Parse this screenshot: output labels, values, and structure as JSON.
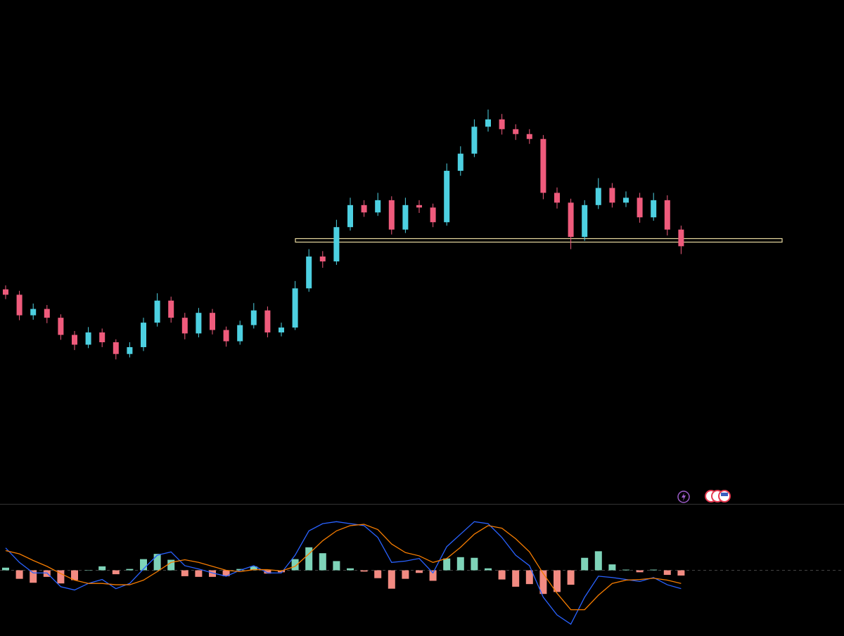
{
  "chart_data": [
    {
      "type": "candlestick",
      "up_color": "#4dd0e1",
      "down_color": "#ef5b7c",
      "level": 153.8,
      "level_color": "#e8d9a0",
      "ylim": [
        100,
        200
      ],
      "open": [
        143.8,
        142.7,
        138.5,
        139.8,
        138.0,
        134.5,
        132.5,
        135.0,
        133.0,
        130.6,
        132.0,
        137.0,
        141.5,
        138.0,
        134.8,
        139.0,
        135.5,
        133.2,
        136.5,
        139.5,
        135.0,
        136.0,
        144.0,
        150.5,
        149.5,
        156.5,
        161.0,
        159.5,
        162.0,
        156.0,
        161.0,
        160.5,
        157.5,
        168.0,
        171.5,
        177.0,
        178.5,
        176.5,
        175.5,
        174.5,
        163.5,
        161.5,
        154.5,
        161.0,
        164.5,
        161.5,
        162.5,
        158.5,
        162.0,
        156.0
      ],
      "high": [
        144.6,
        143.5,
        140.9,
        140.6,
        138.7,
        135.3,
        136.1,
        135.8,
        133.6,
        133.0,
        138.0,
        143.0,
        142.3,
        139.0,
        140.0,
        139.8,
        136.2,
        137.4,
        141.0,
        140.3,
        137.0,
        145.5,
        152.0,
        151.6,
        158.0,
        162.5,
        162.0,
        163.5,
        162.8,
        162.5,
        162.0,
        161.3,
        169.5,
        173.0,
        178.5,
        180.5,
        179.6,
        177.5,
        176.5,
        175.3,
        164.6,
        162.3,
        162.0,
        166.5,
        165.5,
        163.8,
        163.5,
        163.5,
        163.0,
        156.8
      ],
      "low": [
        141.8,
        137.5,
        137.6,
        136.9,
        133.5,
        131.4,
        131.8,
        132.0,
        129.5,
        129.9,
        131.2,
        136.2,
        137.0,
        133.6,
        134.0,
        134.6,
        132.1,
        132.5,
        135.8,
        134.0,
        134.2,
        135.5,
        143.3,
        148.2,
        148.8,
        155.8,
        158.6,
        158.8,
        155.0,
        155.3,
        159.4,
        156.5,
        156.8,
        167.0,
        170.8,
        176.0,
        175.4,
        174.3,
        173.5,
        162.2,
        160.3,
        152.0,
        153.7,
        160.2,
        160.5,
        160.6,
        157.4,
        157.8,
        154.8,
        151.0
      ],
      "close": [
        142.7,
        138.5,
        139.8,
        138.0,
        134.5,
        132.5,
        135.0,
        133.0,
        130.6,
        132.0,
        137.0,
        141.5,
        138.0,
        134.8,
        139.0,
        135.5,
        133.2,
        136.5,
        139.5,
        135.0,
        136.0,
        144.0,
        150.5,
        149.5,
        156.5,
        161.0,
        159.5,
        162.0,
        156.0,
        161.0,
        160.5,
        157.5,
        168.0,
        171.5,
        177.0,
        178.5,
        176.5,
        175.5,
        174.5,
        163.5,
        161.5,
        154.5,
        161.0,
        164.5,
        161.5,
        162.5,
        158.5,
        162.0,
        156.0,
        152.6
      ]
    },
    {
      "type": "macd",
      "ylim": [
        -1,
        1
      ],
      "series": [
        {
          "color": "#2962ff",
          "values": [
            0.34,
            0.12,
            -0.04,
            -0.04,
            -0.25,
            -0.3,
            -0.2,
            -0.14,
            -0.28,
            -0.2,
            0.02,
            0.23,
            0.28,
            0.07,
            0.02,
            -0.04,
            -0.09,
            0.0,
            0.07,
            -0.04,
            -0.04,
            0.23,
            0.6,
            0.71,
            0.74,
            0.71,
            0.68,
            0.5,
            0.12,
            0.14,
            0.18,
            -0.04,
            0.36,
            0.55,
            0.74,
            0.71,
            0.5,
            0.23,
            0.07,
            -0.41,
            -0.68,
            -0.82,
            -0.41,
            -0.09,
            -0.11,
            -0.14,
            -0.17,
            -0.11,
            -0.22,
            -0.28
          ]
        },
        {
          "color": "#f57c00",
          "values": [
            0.3,
            0.25,
            0.15,
            0.06,
            -0.05,
            -0.15,
            -0.2,
            -0.2,
            -0.22,
            -0.22,
            -0.15,
            -0.02,
            0.12,
            0.16,
            0.12,
            0.06,
            0.0,
            -0.02,
            0.01,
            0.01,
            -0.01,
            0.06,
            0.25,
            0.45,
            0.6,
            0.68,
            0.7,
            0.62,
            0.4,
            0.27,
            0.22,
            0.12,
            0.18,
            0.35,
            0.55,
            0.68,
            0.64,
            0.48,
            0.28,
            -0.05,
            -0.35,
            -0.6,
            -0.6,
            -0.38,
            -0.2,
            -0.15,
            -0.14,
            -0.12,
            -0.15,
            -0.2
          ]
        }
      ],
      "histogram": [
        0.04,
        -0.13,
        -0.19,
        -0.1,
        -0.2,
        -0.15,
        0.0,
        0.06,
        -0.06,
        0.02,
        0.17,
        0.25,
        0.16,
        -0.09,
        -0.1,
        -0.1,
        -0.09,
        0.02,
        0.06,
        -0.05,
        -0.03,
        0.17,
        0.35,
        0.26,
        0.14,
        0.03,
        -0.02,
        -0.12,
        -0.28,
        -0.13,
        -0.04,
        -0.16,
        0.18,
        0.2,
        0.19,
        0.03,
        -0.14,
        -0.25,
        -0.21,
        -0.36,
        -0.33,
        -0.22,
        0.19,
        0.29,
        0.09,
        0.01,
        -0.03,
        0.01,
        -0.07,
        -0.08
      ],
      "hist_up_color": "#7ed3b8",
      "hist_down_color": "#f28b82"
    }
  ]
}
